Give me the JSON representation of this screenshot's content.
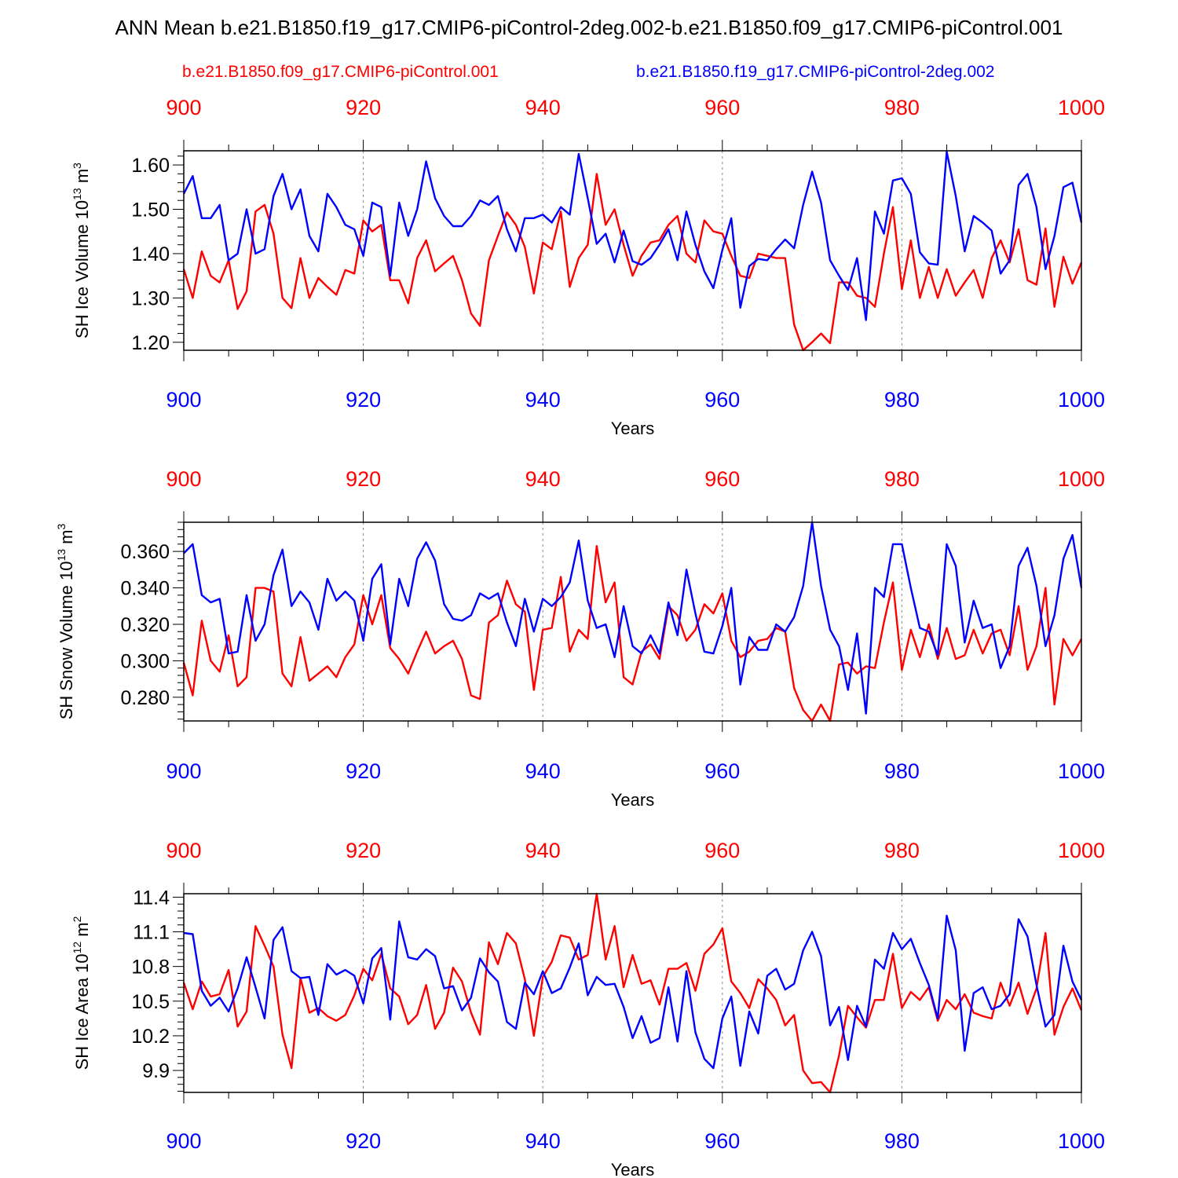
{
  "title": "ANN Mean b.e21.B1850.f19_g17.CMIP6-piControl-2deg.002-b.e21.B1850.f09_g17.CMIP6-piControl.001",
  "legend": {
    "red_label": "b.e21.B1850.f09_g17.CMIP6-piControl.001",
    "blue_label": "b.e21.B1850.f19_g17.CMIP6-piControl-2deg.002"
  },
  "colors": {
    "red": "#ff0000",
    "blue": "#0000ff",
    "axis": "#000000",
    "grid": "#888888"
  },
  "chart_data": [
    {
      "type": "line",
      "title": "",
      "xlabel": "Years",
      "ylabel": "SH Ice Volume 10",
      "ylabel_exp": "13",
      "ylabel_unit": "m",
      "ylabel_unit_exp": "3",
      "xlim": [
        900,
        1000
      ],
      "ylim": [
        1.182,
        1.632
      ],
      "xticks": [
        900,
        920,
        940,
        960,
        980,
        1000
      ],
      "xtick_labels": [
        "900",
        "920",
        "940",
        "960",
        "980",
        "1000"
      ],
      "yticks": [
        1.2,
        1.3,
        1.4,
        1.5,
        1.6
      ],
      "ytick_labels": [
        "1.20",
        "1.30",
        "1.40",
        "1.50",
        "1.60"
      ],
      "x_start": 900,
      "series": [
        {
          "name": "b.e21.B1850.f09_g17.CMIP6-piControl.001",
          "color": "red",
          "values": [
            1.365,
            1.3,
            1.405,
            1.35,
            1.335,
            1.385,
            1.275,
            1.315,
            1.495,
            1.51,
            1.445,
            1.3,
            1.277,
            1.39,
            1.3,
            1.345,
            1.325,
            1.307,
            1.363,
            1.355,
            1.475,
            1.45,
            1.465,
            1.34,
            1.34,
            1.288,
            1.39,
            1.43,
            1.36,
            1.378,
            1.395,
            1.34,
            1.265,
            1.237,
            1.385,
            1.44,
            1.493,
            1.465,
            1.415,
            1.31,
            1.425,
            1.41,
            1.495,
            1.325,
            1.39,
            1.42,
            1.58,
            1.465,
            1.5,
            1.42,
            1.35,
            1.395,
            1.425,
            1.43,
            1.465,
            1.485,
            1.4,
            1.38,
            1.475,
            1.45,
            1.445,
            1.395,
            1.35,
            1.345,
            1.4,
            1.395,
            1.39,
            1.39,
            1.24,
            1.182,
            1.2,
            1.22,
            1.198,
            1.335,
            1.335,
            1.305,
            1.3,
            1.28,
            1.4,
            1.505,
            1.32,
            1.43,
            1.3,
            1.37,
            1.3,
            1.365,
            1.305,
            1.335,
            1.363,
            1.3,
            1.39,
            1.43,
            1.38,
            1.455,
            1.34,
            1.33,
            1.457,
            1.28,
            1.393,
            1.332,
            1.38
          ]
        },
        {
          "name": "b.e21.B1850.f19_g17.CMIP6-piControl-2deg.002",
          "color": "blue",
          "values": [
            1.535,
            1.575,
            1.48,
            1.48,
            1.51,
            1.385,
            1.4,
            1.5,
            1.4,
            1.41,
            1.53,
            1.58,
            1.5,
            1.545,
            1.44,
            1.405,
            1.535,
            1.505,
            1.465,
            1.455,
            1.395,
            1.515,
            1.505,
            1.35,
            1.515,
            1.44,
            1.5,
            1.608,
            1.525,
            1.485,
            1.462,
            1.462,
            1.485,
            1.52,
            1.51,
            1.53,
            1.455,
            1.405,
            1.48,
            1.48,
            1.488,
            1.47,
            1.505,
            1.488,
            1.625,
            1.525,
            1.422,
            1.445,
            1.38,
            1.452,
            1.383,
            1.375,
            1.39,
            1.42,
            1.455,
            1.385,
            1.495,
            1.42,
            1.36,
            1.322,
            1.408,
            1.48,
            1.278,
            1.372,
            1.388,
            1.385,
            1.41,
            1.432,
            1.412,
            1.51,
            1.585,
            1.515,
            1.385,
            1.35,
            1.318,
            1.39,
            1.25,
            1.495,
            1.445,
            1.565,
            1.57,
            1.535,
            1.403,
            1.378,
            1.375,
            1.63,
            1.53,
            1.405,
            1.485,
            1.47,
            1.452,
            1.355,
            1.385,
            1.555,
            1.58,
            1.505,
            1.365,
            1.44,
            1.55,
            1.56,
            1.47
          ]
        }
      ]
    },
    {
      "type": "line",
      "title": "",
      "xlabel": "Years",
      "ylabel": "SH Snow Volume 10",
      "ylabel_exp": "13",
      "ylabel_unit": "m",
      "ylabel_unit_exp": "3",
      "xlim": [
        900,
        1000
      ],
      "ylim": [
        0.267,
        0.376
      ],
      "xticks": [
        900,
        920,
        940,
        960,
        980,
        1000
      ],
      "xtick_labels": [
        "900",
        "920",
        "940",
        "960",
        "980",
        "1000"
      ],
      "yticks": [
        0.28,
        0.3,
        0.32,
        0.34,
        0.36
      ],
      "ytick_labels": [
        "0.280",
        "0.300",
        "0.320",
        "0.340",
        "0.360"
      ],
      "x_start": 900,
      "series": [
        {
          "name": "b.e21.B1850.f09_g17.CMIP6-piControl.001",
          "color": "red",
          "values": [
            0.299,
            0.281,
            0.322,
            0.3,
            0.294,
            0.314,
            0.286,
            0.291,
            0.34,
            0.34,
            0.338,
            0.293,
            0.286,
            0.313,
            0.289,
            0.293,
            0.297,
            0.291,
            0.302,
            0.309,
            0.336,
            0.32,
            0.336,
            0.307,
            0.301,
            0.293,
            0.305,
            0.316,
            0.304,
            0.308,
            0.311,
            0.301,
            0.281,
            0.279,
            0.321,
            0.325,
            0.344,
            0.331,
            0.327,
            0.284,
            0.317,
            0.318,
            0.346,
            0.305,
            0.317,
            0.312,
            0.363,
            0.332,
            0.343,
            0.291,
            0.287,
            0.305,
            0.309,
            0.301,
            0.33,
            0.325,
            0.311,
            0.317,
            0.331,
            0.326,
            0.337,
            0.311,
            0.302,
            0.305,
            0.311,
            0.312,
            0.318,
            0.316,
            0.285,
            0.273,
            0.267,
            0.276,
            0.267,
            0.298,
            0.299,
            0.293,
            0.297,
            0.296,
            0.321,
            0.343,
            0.295,
            0.317,
            0.302,
            0.32,
            0.301,
            0.318,
            0.301,
            0.303,
            0.317,
            0.304,
            0.315,
            0.317,
            0.303,
            0.33,
            0.295,
            0.308,
            0.34,
            0.276,
            0.312,
            0.303,
            0.312
          ]
        },
        {
          "name": "b.e21.B1850.f19_g17.CMIP6-piControl-2deg.002",
          "color": "blue",
          "values": [
            0.359,
            0.364,
            0.336,
            0.332,
            0.334,
            0.304,
            0.305,
            0.336,
            0.311,
            0.32,
            0.347,
            0.361,
            0.33,
            0.338,
            0.332,
            0.317,
            0.345,
            0.333,
            0.338,
            0.333,
            0.311,
            0.345,
            0.353,
            0.309,
            0.345,
            0.33,
            0.356,
            0.365,
            0.355,
            0.331,
            0.323,
            0.322,
            0.325,
            0.337,
            0.334,
            0.337,
            0.321,
            0.308,
            0.334,
            0.316,
            0.334,
            0.33,
            0.335,
            0.343,
            0.366,
            0.333,
            0.318,
            0.32,
            0.302,
            0.33,
            0.308,
            0.304,
            0.314,
            0.304,
            0.332,
            0.314,
            0.35,
            0.326,
            0.305,
            0.304,
            0.319,
            0.34,
            0.287,
            0.313,
            0.306,
            0.306,
            0.32,
            0.316,
            0.324,
            0.341,
            0.376,
            0.341,
            0.317,
            0.308,
            0.284,
            0.315,
            0.271,
            0.34,
            0.335,
            0.364,
            0.364,
            0.34,
            0.318,
            0.316,
            0.303,
            0.364,
            0.352,
            0.31,
            0.333,
            0.318,
            0.32,
            0.296,
            0.308,
            0.352,
            0.362,
            0.341,
            0.308,
            0.325,
            0.356,
            0.369,
            0.34
          ]
        }
      ]
    },
    {
      "type": "line",
      "title": "",
      "xlabel": "Years",
      "ylabel": "SH Ice Area 10",
      "ylabel_exp": "12",
      "ylabel_unit": "m",
      "ylabel_unit_exp": "2",
      "xlim": [
        900,
        1000
      ],
      "ylim": [
        9.71,
        11.43
      ],
      "xticks": [
        900,
        920,
        940,
        960,
        980,
        1000
      ],
      "xtick_labels": [
        "900",
        "920",
        "940",
        "960",
        "980",
        "1000"
      ],
      "yticks": [
        9.9,
        10.2,
        10.5,
        10.8,
        11.1,
        11.4
      ],
      "ytick_labels": [
        "9.9",
        "10.2",
        "10.5",
        "10.8",
        "11.1",
        "11.4"
      ],
      "x_start": 900,
      "series": [
        {
          "name": "b.e21.B1850.f09_g17.CMIP6-piControl.001",
          "color": "red",
          "values": [
            10.66,
            10.43,
            10.67,
            10.54,
            10.56,
            10.77,
            10.28,
            10.41,
            11.15,
            10.98,
            10.8,
            10.21,
            9.92,
            10.7,
            10.4,
            10.44,
            10.37,
            10.33,
            10.38,
            10.55,
            10.78,
            10.68,
            10.91,
            10.61,
            10.54,
            10.3,
            10.38,
            10.64,
            10.26,
            10.4,
            10.79,
            10.67,
            10.4,
            10.21,
            11.01,
            10.82,
            11.09,
            11.0,
            10.69,
            10.2,
            10.71,
            10.84,
            11.07,
            11.05,
            10.86,
            10.9,
            11.43,
            10.86,
            11.15,
            10.62,
            10.9,
            10.65,
            10.68,
            10.47,
            10.78,
            10.78,
            10.83,
            10.59,
            10.91,
            10.99,
            11.13,
            10.67,
            10.57,
            10.44,
            10.69,
            10.61,
            10.51,
            10.29,
            10.38,
            9.9,
            9.79,
            9.8,
            9.71,
            10.03,
            10.46,
            10.36,
            10.27,
            10.51,
            10.51,
            10.91,
            10.44,
            10.58,
            10.51,
            10.62,
            10.33,
            10.51,
            10.43,
            10.56,
            10.4,
            10.37,
            10.35,
            10.66,
            10.46,
            10.66,
            10.39,
            10.61,
            11.09,
            10.21,
            10.45,
            10.61,
            10.42
          ]
        },
        {
          "name": "b.e21.B1850.f19_g17.CMIP6-piControl-2deg.002",
          "color": "blue",
          "values": [
            11.09,
            11.08,
            10.59,
            10.46,
            10.53,
            10.41,
            10.61,
            10.88,
            10.62,
            10.35,
            11.03,
            11.14,
            10.76,
            10.7,
            10.71,
            10.38,
            10.82,
            10.73,
            10.77,
            10.72,
            10.48,
            10.87,
            10.96,
            10.34,
            11.19,
            10.88,
            10.86,
            10.95,
            10.89,
            10.61,
            10.63,
            10.42,
            10.53,
            10.87,
            10.75,
            10.67,
            10.32,
            10.26,
            10.66,
            10.56,
            10.76,
            10.57,
            10.61,
            10.79,
            11.0,
            10.55,
            10.71,
            10.64,
            10.65,
            10.45,
            10.18,
            10.37,
            10.14,
            10.18,
            10.62,
            10.15,
            10.76,
            10.23,
            10.0,
            9.92,
            10.35,
            10.54,
            9.94,
            10.41,
            10.22,
            10.72,
            10.78,
            10.6,
            10.65,
            10.94,
            11.1,
            10.89,
            10.29,
            10.45,
            9.99,
            10.46,
            10.28,
            10.86,
            10.78,
            11.09,
            10.95,
            11.04,
            10.83,
            10.64,
            10.35,
            11.24,
            10.94,
            10.07,
            10.57,
            10.62,
            10.43,
            10.46,
            10.56,
            11.21,
            11.06,
            10.64,
            10.28,
            10.38,
            10.98,
            10.67,
            10.51
          ]
        }
      ]
    }
  ]
}
